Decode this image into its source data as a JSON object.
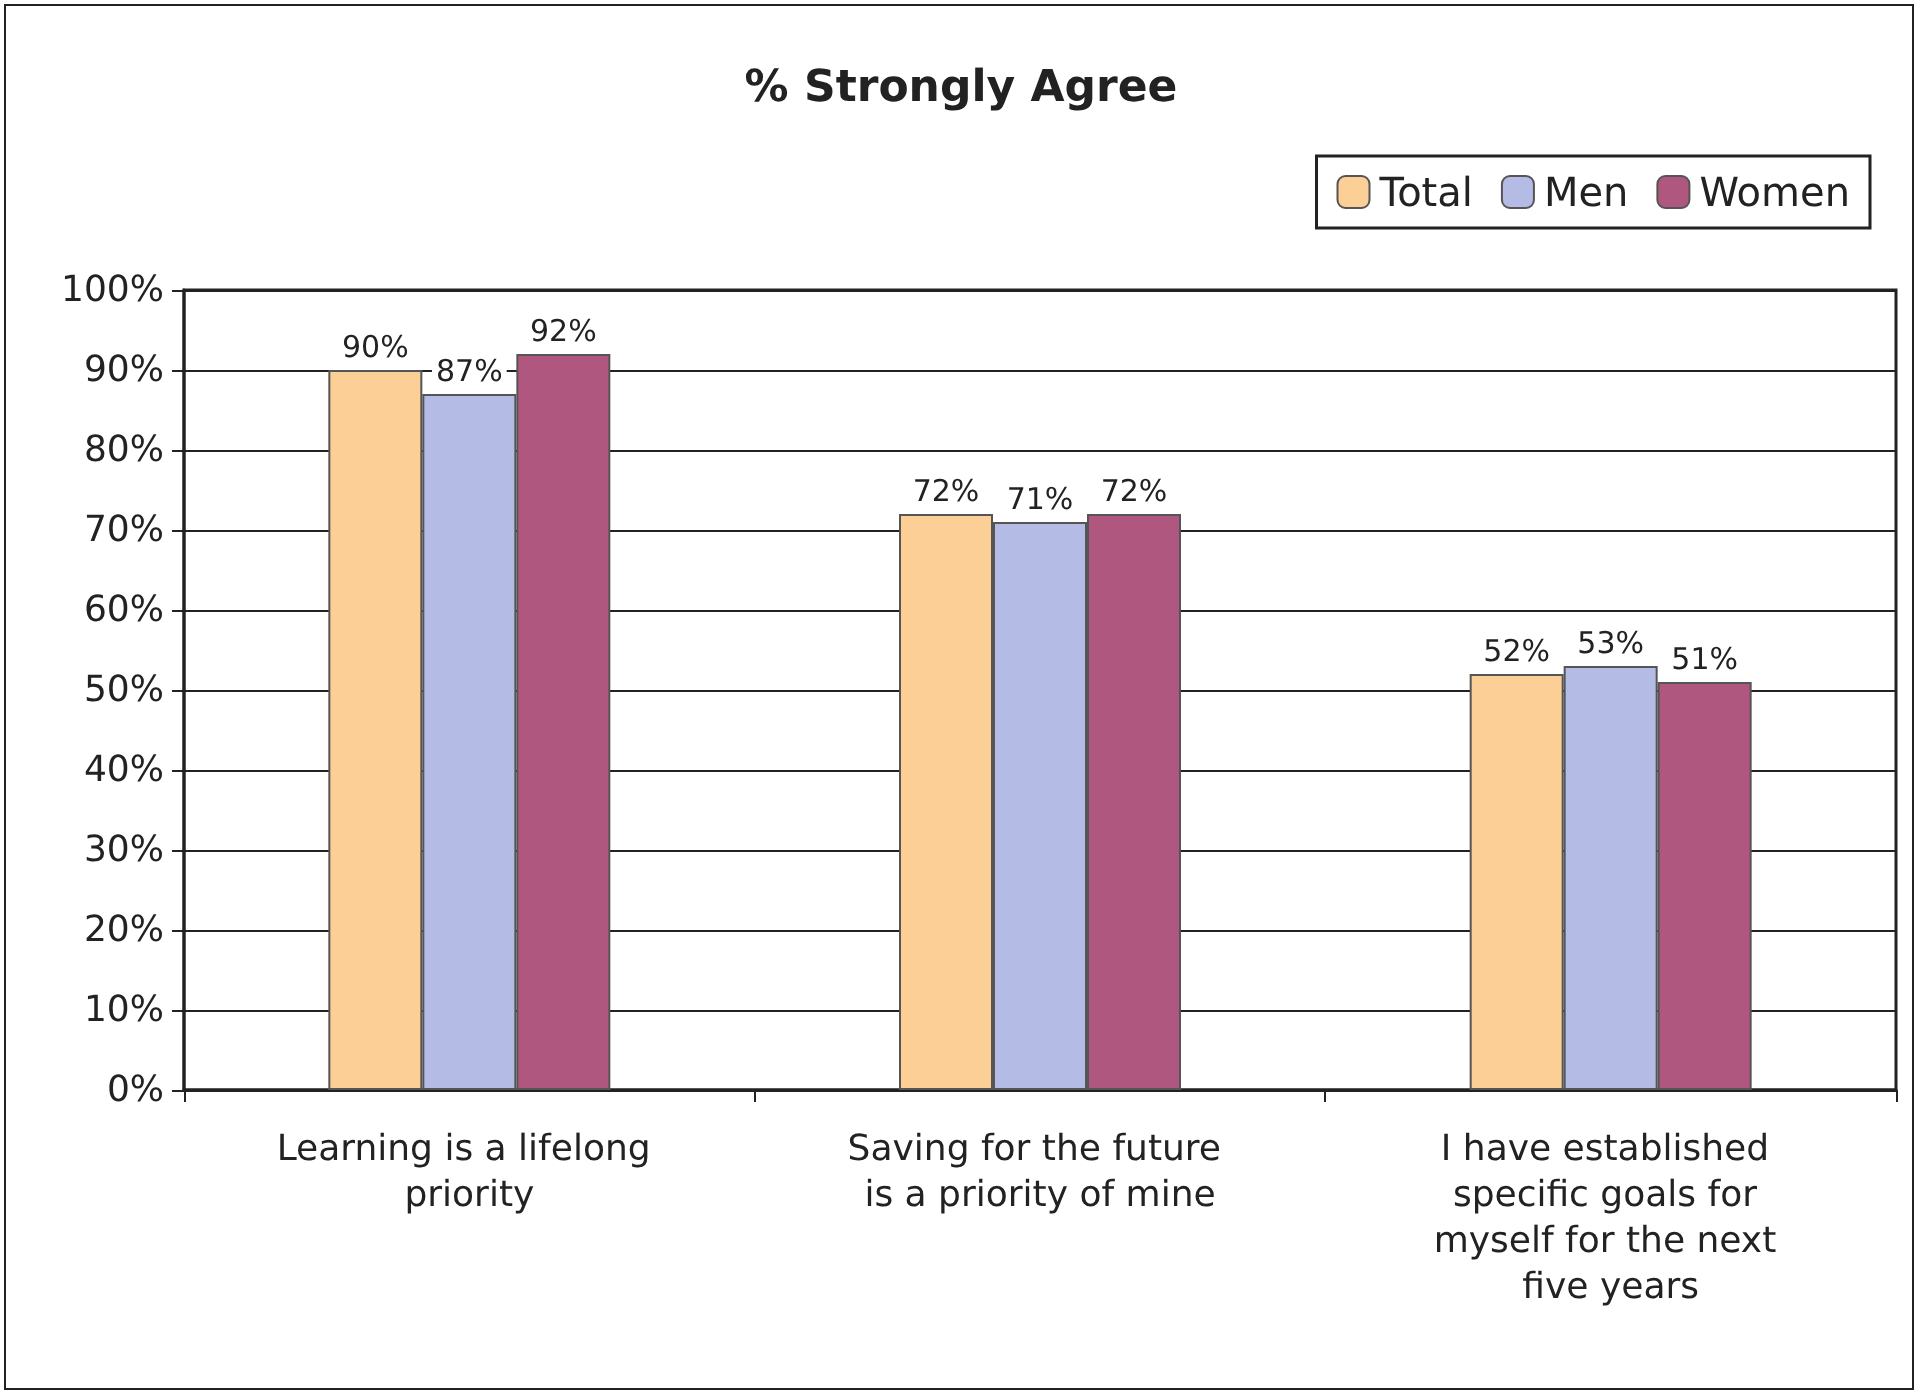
{
  "chart_data": {
    "type": "bar",
    "title": "% Strongly Agree",
    "categories": [
      "Learning is a lifelong priority",
      "Saving for the future is a priority of mine",
      "I have established specific goals for myself for the next five years"
    ],
    "series": [
      {
        "name": "Total",
        "color": "#fbcf96",
        "values": [
          90,
          72,
          52
        ],
        "value_labels": [
          "90%",
          "72%",
          "52%"
        ]
      },
      {
        "name": "Men",
        "color": "#b4bce6",
        "values": [
          87,
          71,
          53
        ],
        "value_labels": [
          "87%",
          "71%",
          "53%"
        ]
      },
      {
        "name": "Women",
        "color": "#b0577f",
        "values": [
          92,
          72,
          51
        ],
        "value_labels": [
          "92%",
          "72%",
          "51%"
        ]
      }
    ],
    "ylim": [
      0,
      100
    ],
    "yticks": [
      {
        "value": 0,
        "label": "0%"
      },
      {
        "value": 10,
        "label": "10%"
      },
      {
        "value": 20,
        "label": "20%"
      },
      {
        "value": 30,
        "label": "30%"
      },
      {
        "value": 40,
        "label": "40%"
      },
      {
        "value": 50,
        "label": "50%"
      },
      {
        "value": 60,
        "label": "60%"
      },
      {
        "value": 70,
        "label": "70%"
      },
      {
        "value": 80,
        "label": "80%"
      },
      {
        "value": 90,
        "label": "90%"
      },
      {
        "value": 100,
        "label": "100%"
      }
    ],
    "grid": "y",
    "legend": "top right"
  }
}
